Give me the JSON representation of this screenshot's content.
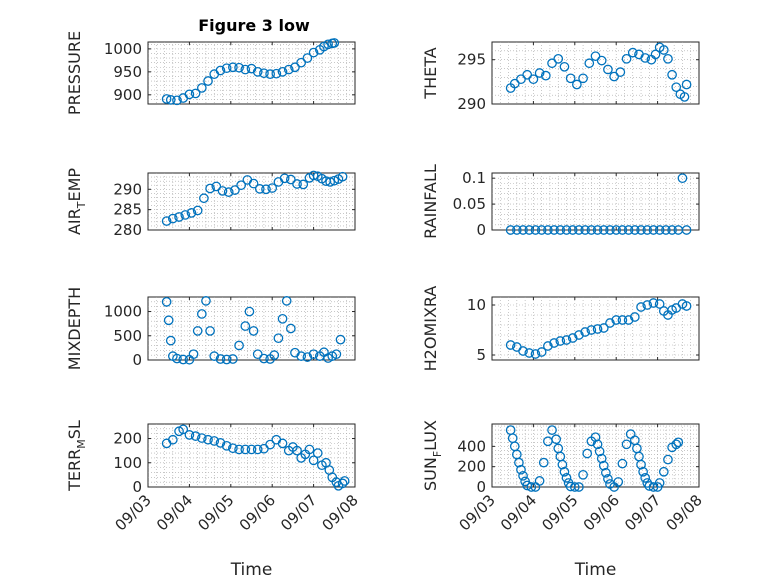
{
  "figure_title": "Figure 3 low",
  "marker_color": "#0072BD",
  "chart_data": [
    {
      "type": "scatter",
      "ylabel": "PRESSURE",
      "title": "Figure 3 low",
      "ylim": [
        880,
        1015
      ],
      "yticks": [
        900,
        950,
        1000
      ],
      "ytick_labels": [
        "900",
        "950",
        "1000"
      ],
      "xlim": [
        0,
        5
      ],
      "xticks": [
        0,
        1,
        2,
        3,
        4,
        5
      ],
      "xtick_labels": [],
      "xlabel": "",
      "grid": true,
      "points": [
        [
          0.45,
          891
        ],
        [
          0.55,
          889
        ],
        [
          0.7,
          888
        ],
        [
          0.85,
          893
        ],
        [
          1.0,
          901
        ],
        [
          1.15,
          903
        ],
        [
          1.3,
          915
        ],
        [
          1.45,
          930
        ],
        [
          1.6,
          945
        ],
        [
          1.75,
          953
        ],
        [
          1.9,
          958
        ],
        [
          2.05,
          960
        ],
        [
          2.2,
          959
        ],
        [
          2.35,
          955
        ],
        [
          2.5,
          957
        ],
        [
          2.65,
          950
        ],
        [
          2.8,
          947
        ],
        [
          2.95,
          945
        ],
        [
          3.1,
          946
        ],
        [
          3.25,
          950
        ],
        [
          3.4,
          955
        ],
        [
          3.55,
          960
        ],
        [
          3.7,
          970
        ],
        [
          3.85,
          980
        ],
        [
          4.0,
          992
        ],
        [
          4.15,
          998
        ],
        [
          4.25,
          1005
        ],
        [
          4.35,
          1010
        ],
        [
          4.45,
          1012
        ],
        [
          4.5,
          1013
        ]
      ]
    },
    {
      "type": "scatter",
      "ylabel": "THETA",
      "ylim": [
        290,
        297
      ],
      "yticks": [
        290,
        295
      ],
      "ytick_labels": [
        "290",
        "295"
      ],
      "xlim": [
        0,
        5
      ],
      "xticks": [
        0,
        1,
        2,
        3,
        4,
        5
      ],
      "xtick_labels": [],
      "xlabel": "",
      "grid": true,
      "points": [
        [
          0.45,
          291.8
        ],
        [
          0.55,
          292.3
        ],
        [
          0.7,
          292.8
        ],
        [
          0.85,
          293.3
        ],
        [
          1.0,
          292.8
        ],
        [
          1.15,
          293.5
        ],
        [
          1.3,
          293.2
        ],
        [
          1.45,
          294.6
        ],
        [
          1.6,
          295.1
        ],
        [
          1.75,
          294.2
        ],
        [
          1.9,
          292.9
        ],
        [
          2.05,
          292.2
        ],
        [
          2.2,
          292.9
        ],
        [
          2.35,
          294.6
        ],
        [
          2.5,
          295.4
        ],
        [
          2.65,
          294.9
        ],
        [
          2.8,
          293.9
        ],
        [
          2.95,
          293.1
        ],
        [
          3.1,
          293.6
        ],
        [
          3.25,
          295.1
        ],
        [
          3.4,
          295.8
        ],
        [
          3.55,
          295.6
        ],
        [
          3.7,
          295.2
        ],
        [
          3.85,
          295.0
        ],
        [
          3.95,
          295.6
        ],
        [
          4.05,
          296.4
        ],
        [
          4.15,
          296.1
        ],
        [
          4.25,
          295.1
        ],
        [
          4.35,
          293.3
        ],
        [
          4.45,
          291.9
        ],
        [
          4.55,
          291.1
        ],
        [
          4.65,
          290.8
        ],
        [
          4.7,
          292.2
        ]
      ]
    },
    {
      "type": "scatter",
      "ylabel": "AIR_TEMP",
      "ylim": [
        280,
        294
      ],
      "yticks": [
        280,
        285,
        290
      ],
      "ytick_labels": [
        "280",
        "285",
        "290"
      ],
      "xlim": [
        0,
        5
      ],
      "xticks": [
        0,
        1,
        2,
        3,
        4,
        5
      ],
      "xtick_labels": [],
      "xlabel": "",
      "grid": true,
      "points": [
        [
          0.45,
          282.2
        ],
        [
          0.6,
          282.8
        ],
        [
          0.75,
          283.2
        ],
        [
          0.9,
          283.7
        ],
        [
          1.05,
          284.2
        ],
        [
          1.2,
          284.8
        ],
        [
          1.35,
          287.8
        ],
        [
          1.5,
          290.2
        ],
        [
          1.65,
          290.7
        ],
        [
          1.8,
          289.6
        ],
        [
          1.95,
          289.3
        ],
        [
          2.1,
          289.8
        ],
        [
          2.25,
          291.0
        ],
        [
          2.4,
          292.3
        ],
        [
          2.55,
          291.4
        ],
        [
          2.7,
          290.1
        ],
        [
          2.85,
          290.0
        ],
        [
          3.0,
          290.3
        ],
        [
          3.15,
          291.8
        ],
        [
          3.3,
          292.7
        ],
        [
          3.45,
          292.4
        ],
        [
          3.6,
          291.3
        ],
        [
          3.75,
          291.2
        ],
        [
          3.9,
          292.8
        ],
        [
          4.0,
          293.4
        ],
        [
          4.1,
          293.2
        ],
        [
          4.2,
          292.6
        ],
        [
          4.3,
          292.0
        ],
        [
          4.4,
          291.8
        ],
        [
          4.5,
          292.1
        ],
        [
          4.6,
          292.5
        ],
        [
          4.7,
          293.1
        ]
      ]
    },
    {
      "type": "scatter",
      "ylabel": "RAINFALL",
      "ylim": [
        0,
        0.11
      ],
      "yticks": [
        0,
        0.05,
        0.1
      ],
      "ytick_labels": [
        "0",
        "0.05",
        "0.1"
      ],
      "xlim": [
        0,
        5
      ],
      "xticks": [
        0,
        1,
        2,
        3,
        4,
        5
      ],
      "xtick_labels": [],
      "xlabel": "",
      "grid": true,
      "points": [
        [
          0.45,
          0
        ],
        [
          0.6,
          0
        ],
        [
          0.75,
          0
        ],
        [
          0.9,
          0
        ],
        [
          1.05,
          0
        ],
        [
          1.2,
          0
        ],
        [
          1.35,
          0
        ],
        [
          1.5,
          0
        ],
        [
          1.65,
          0
        ],
        [
          1.8,
          0
        ],
        [
          1.95,
          0
        ],
        [
          2.1,
          0
        ],
        [
          2.25,
          0
        ],
        [
          2.4,
          0
        ],
        [
          2.55,
          0
        ],
        [
          2.7,
          0
        ],
        [
          2.85,
          0
        ],
        [
          3.0,
          0
        ],
        [
          3.15,
          0
        ],
        [
          3.3,
          0
        ],
        [
          3.45,
          0
        ],
        [
          3.6,
          0
        ],
        [
          3.75,
          0
        ],
        [
          3.9,
          0
        ],
        [
          4.05,
          0
        ],
        [
          4.2,
          0
        ],
        [
          4.35,
          0
        ],
        [
          4.5,
          0
        ],
        [
          4.6,
          0.1
        ],
        [
          4.7,
          0
        ]
      ]
    },
    {
      "type": "scatter",
      "ylabel": "MIXDEPTH",
      "ylim": [
        0,
        1300
      ],
      "yticks": [
        0,
        500,
        1000
      ],
      "ytick_labels": [
        "0",
        "500",
        "1000"
      ],
      "xlim": [
        0,
        5
      ],
      "xticks": [
        0,
        1,
        2,
        3,
        4,
        5
      ],
      "xtick_labels": [],
      "xlabel": "",
      "grid": true,
      "points": [
        [
          0.45,
          1200
        ],
        [
          0.5,
          820
        ],
        [
          0.55,
          400
        ],
        [
          0.6,
          80
        ],
        [
          0.7,
          30
        ],
        [
          0.85,
          10
        ],
        [
          1.0,
          5
        ],
        [
          1.1,
          120
        ],
        [
          1.2,
          600
        ],
        [
          1.3,
          950
        ],
        [
          1.4,
          1220
        ],
        [
          1.5,
          600
        ],
        [
          1.6,
          80
        ],
        [
          1.75,
          20
        ],
        [
          1.9,
          10
        ],
        [
          2.05,
          20
        ],
        [
          2.2,
          300
        ],
        [
          2.35,
          700
        ],
        [
          2.45,
          1000
        ],
        [
          2.55,
          600
        ],
        [
          2.65,
          120
        ],
        [
          2.8,
          30
        ],
        [
          2.95,
          20
        ],
        [
          3.05,
          100
        ],
        [
          3.15,
          450
        ],
        [
          3.25,
          850
        ],
        [
          3.35,
          1220
        ],
        [
          3.45,
          650
        ],
        [
          3.55,
          150
        ],
        [
          3.7,
          80
        ],
        [
          3.85,
          60
        ],
        [
          4.0,
          120
        ],
        [
          4.15,
          80
        ],
        [
          4.25,
          160
        ],
        [
          4.35,
          40
        ],
        [
          4.45,
          80
        ],
        [
          4.55,
          120
        ],
        [
          4.65,
          420
        ]
      ]
    },
    {
      "type": "scatter",
      "ylabel": "H2OMIXRA",
      "ylim": [
        4.5,
        10.8
      ],
      "yticks": [
        5,
        10
      ],
      "ytick_labels": [
        "5",
        "10"
      ],
      "xlim": [
        0,
        5
      ],
      "xticks": [
        0,
        1,
        2,
        3,
        4,
        5
      ],
      "xtick_labels": [],
      "xlabel": "",
      "grid": true,
      "points": [
        [
          0.45,
          6.0
        ],
        [
          0.6,
          5.8
        ],
        [
          0.75,
          5.4
        ],
        [
          0.9,
          5.2
        ],
        [
          1.05,
          5.1
        ],
        [
          1.2,
          5.3
        ],
        [
          1.35,
          5.9
        ],
        [
          1.5,
          6.2
        ],
        [
          1.65,
          6.4
        ],
        [
          1.8,
          6.5
        ],
        [
          1.95,
          6.7
        ],
        [
          2.1,
          7.0
        ],
        [
          2.25,
          7.3
        ],
        [
          2.4,
          7.5
        ],
        [
          2.55,
          7.6
        ],
        [
          2.7,
          7.7
        ],
        [
          2.85,
          8.2
        ],
        [
          3.0,
          8.5
        ],
        [
          3.15,
          8.5
        ],
        [
          3.3,
          8.5
        ],
        [
          3.45,
          8.8
        ],
        [
          3.6,
          9.8
        ],
        [
          3.75,
          10.0
        ],
        [
          3.9,
          10.2
        ],
        [
          4.05,
          10.1
        ],
        [
          4.15,
          9.4
        ],
        [
          4.25,
          9.0
        ],
        [
          4.35,
          9.5
        ],
        [
          4.45,
          9.7
        ],
        [
          4.6,
          10.1
        ],
        [
          4.7,
          9.9
        ]
      ]
    },
    {
      "type": "scatter",
      "ylabel": "TERR_MSL",
      "ylim": [
        0,
        260
      ],
      "yticks": [
        0,
        100,
        200
      ],
      "ytick_labels": [
        "0",
        "100",
        "200"
      ],
      "xlim": [
        0,
        5
      ],
      "xticks": [
        0,
        1,
        2,
        3,
        4,
        5
      ],
      "xtick_labels": [
        "09/03",
        "09/04",
        "09/05",
        "09/06",
        "09/07",
        "09/08"
      ],
      "xlabel": "Time",
      "grid": true,
      "points": [
        [
          0.45,
          180
        ],
        [
          0.6,
          195
        ],
        [
          0.75,
          230
        ],
        [
          0.85,
          238
        ],
        [
          1.0,
          215
        ],
        [
          1.15,
          210
        ],
        [
          1.3,
          202
        ],
        [
          1.45,
          195
        ],
        [
          1.6,
          190
        ],
        [
          1.75,
          182
        ],
        [
          1.9,
          170
        ],
        [
          2.05,
          160
        ],
        [
          2.2,
          155
        ],
        [
          2.35,
          155
        ],
        [
          2.5,
          155
        ],
        [
          2.65,
          155
        ],
        [
          2.8,
          158
        ],
        [
          2.95,
          175
        ],
        [
          3.1,
          195
        ],
        [
          3.25,
          180
        ],
        [
          3.4,
          150
        ],
        [
          3.5,
          165
        ],
        [
          3.6,
          150
        ],
        [
          3.7,
          120
        ],
        [
          3.8,
          135
        ],
        [
          3.9,
          155
        ],
        [
          4.0,
          110
        ],
        [
          4.1,
          140
        ],
        [
          4.2,
          90
        ],
        [
          4.3,
          100
        ],
        [
          4.38,
          70
        ],
        [
          4.45,
          40
        ],
        [
          4.55,
          20
        ],
        [
          4.6,
          5
        ],
        [
          4.7,
          15
        ],
        [
          4.75,
          25
        ]
      ]
    },
    {
      "type": "scatter",
      "ylabel": "SUN_FLUX",
      "ylim": [
        0,
        620
      ],
      "yticks": [
        0,
        200,
        400
      ],
      "ytick_labels": [
        "0",
        "200",
        "400"
      ],
      "xlim": [
        0,
        5
      ],
      "xticks": [
        0,
        1,
        2,
        3,
        4,
        5
      ],
      "xtick_labels": [
        "09/03",
        "09/04",
        "09/05",
        "09/06",
        "09/07",
        "09/08"
      ],
      "xlabel": "Time",
      "grid": true,
      "points": [
        [
          0.45,
          560
        ],
        [
          0.5,
          480
        ],
        [
          0.55,
          400
        ],
        [
          0.6,
          320
        ],
        [
          0.65,
          240
        ],
        [
          0.7,
          170
        ],
        [
          0.75,
          110
        ],
        [
          0.8,
          55
        ],
        [
          0.85,
          15
        ],
        [
          0.95,
          0
        ],
        [
          1.05,
          0
        ],
        [
          1.15,
          60
        ],
        [
          1.25,
          240
        ],
        [
          1.35,
          450
        ],
        [
          1.45,
          560
        ],
        [
          1.55,
          470
        ],
        [
          1.6,
          380
        ],
        [
          1.65,
          300
        ],
        [
          1.7,
          220
        ],
        [
          1.75,
          150
        ],
        [
          1.8,
          90
        ],
        [
          1.85,
          40
        ],
        [
          1.9,
          5
        ],
        [
          2.0,
          0
        ],
        [
          2.1,
          0
        ],
        [
          2.2,
          120
        ],
        [
          2.3,
          330
        ],
        [
          2.4,
          450
        ],
        [
          2.5,
          490
        ],
        [
          2.55,
          420
        ],
        [
          2.6,
          350
        ],
        [
          2.65,
          280
        ],
        [
          2.7,
          210
        ],
        [
          2.75,
          140
        ],
        [
          2.8,
          80
        ],
        [
          2.85,
          30
        ],
        [
          2.95,
          0
        ],
        [
          3.05,
          50
        ],
        [
          3.15,
          230
        ],
        [
          3.25,
          420
        ],
        [
          3.35,
          520
        ],
        [
          3.45,
          460
        ],
        [
          3.5,
          380
        ],
        [
          3.55,
          300
        ],
        [
          3.6,
          220
        ],
        [
          3.65,
          150
        ],
        [
          3.7,
          90
        ],
        [
          3.75,
          40
        ],
        [
          3.8,
          10
        ],
        [
          3.9,
          0
        ],
        [
          4.0,
          0
        ],
        [
          4.05,
          40
        ],
        [
          4.15,
          150
        ],
        [
          4.25,
          270
        ],
        [
          4.35,
          390
        ],
        [
          4.45,
          420
        ],
        [
          4.5,
          440
        ]
      ]
    }
  ]
}
